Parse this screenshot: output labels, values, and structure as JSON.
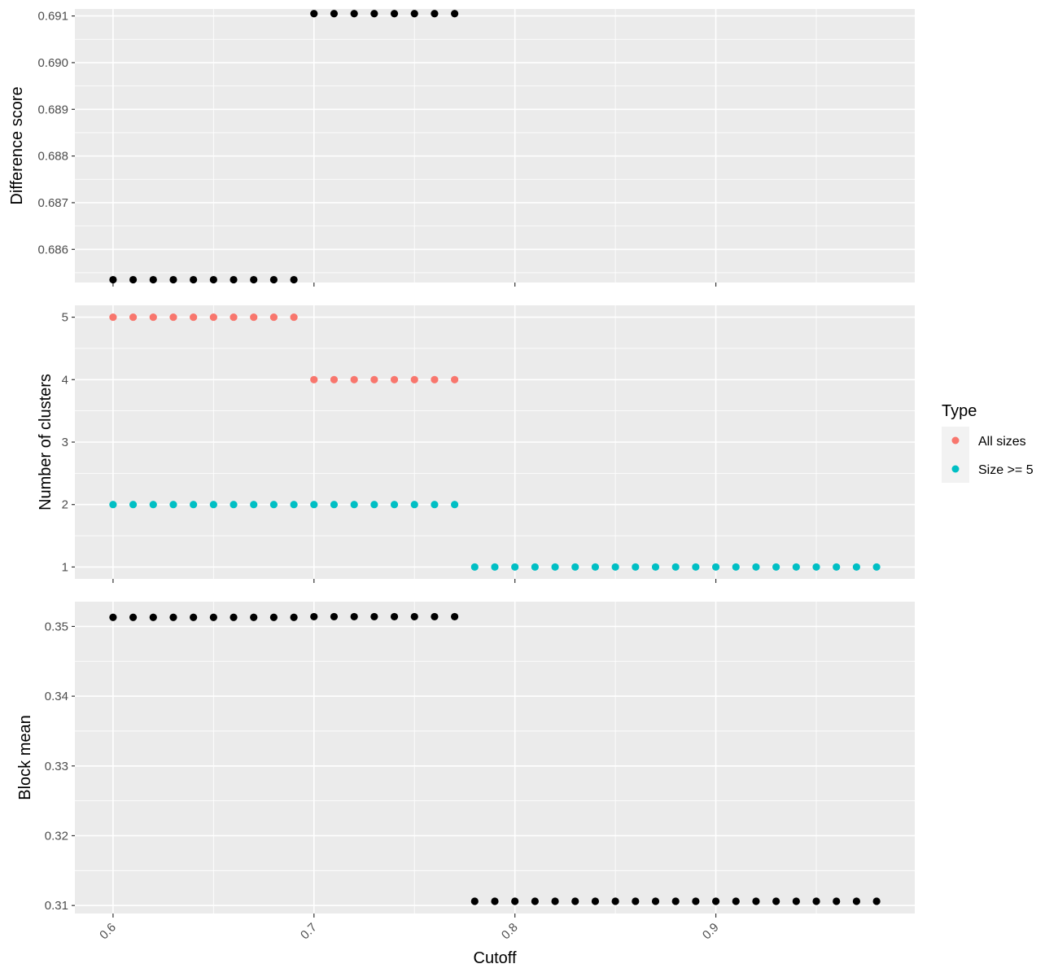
{
  "chart_data": [
    {
      "type": "scatter",
      "panel": "top",
      "xlabel": "",
      "ylabel": "Difference score",
      "xlim": [
        0.581,
        0.999
      ],
      "ylim": [
        0.68529,
        0.69115
      ],
      "yticks": [
        0.686,
        0.687,
        0.688,
        0.689,
        0.69,
        0.691
      ],
      "ytick_labels": [
        "0.686",
        "0.687",
        "0.688",
        "0.689",
        "0.690",
        "0.691"
      ],
      "grid": true,
      "series": [
        {
          "color": "#000000",
          "points": [
            {
              "x": 0.6,
              "y": 0.68535
            },
            {
              "x": 0.61,
              "y": 0.68535
            },
            {
              "x": 0.62,
              "y": 0.68535
            },
            {
              "x": 0.63,
              "y": 0.68535
            },
            {
              "x": 0.64,
              "y": 0.68535
            },
            {
              "x": 0.65,
              "y": 0.68535
            },
            {
              "x": 0.66,
              "y": 0.68535
            },
            {
              "x": 0.67,
              "y": 0.68535
            },
            {
              "x": 0.68,
              "y": 0.68535
            },
            {
              "x": 0.69,
              "y": 0.68535
            },
            {
              "x": 0.7,
              "y": 0.69105
            },
            {
              "x": 0.71,
              "y": 0.69105
            },
            {
              "x": 0.72,
              "y": 0.69105
            },
            {
              "x": 0.73,
              "y": 0.69105
            },
            {
              "x": 0.74,
              "y": 0.69105
            },
            {
              "x": 0.75,
              "y": 0.69105
            },
            {
              "x": 0.76,
              "y": 0.69105
            },
            {
              "x": 0.77,
              "y": 0.69105
            }
          ]
        }
      ]
    },
    {
      "type": "scatter",
      "panel": "middle",
      "xlabel": "",
      "ylabel": "Number of clusters",
      "xlim": [
        0.581,
        0.999
      ],
      "ylim": [
        0.81,
        5.19
      ],
      "yticks": [
        1,
        2,
        3,
        4,
        5
      ],
      "ytick_labels": [
        "1",
        "2",
        "3",
        "4",
        "5"
      ],
      "grid": true,
      "series": [
        {
          "name": "All sizes",
          "color": "#F8766D",
          "points": [
            {
              "x": 0.6,
              "y": 5
            },
            {
              "x": 0.61,
              "y": 5
            },
            {
              "x": 0.62,
              "y": 5
            },
            {
              "x": 0.63,
              "y": 5
            },
            {
              "x": 0.64,
              "y": 5
            },
            {
              "x": 0.65,
              "y": 5
            },
            {
              "x": 0.66,
              "y": 5
            },
            {
              "x": 0.67,
              "y": 5
            },
            {
              "x": 0.68,
              "y": 5
            },
            {
              "x": 0.69,
              "y": 5
            },
            {
              "x": 0.7,
              "y": 4
            },
            {
              "x": 0.71,
              "y": 4
            },
            {
              "x": 0.72,
              "y": 4
            },
            {
              "x": 0.73,
              "y": 4
            },
            {
              "x": 0.74,
              "y": 4
            },
            {
              "x": 0.75,
              "y": 4
            },
            {
              "x": 0.76,
              "y": 4
            },
            {
              "x": 0.77,
              "y": 4
            }
          ]
        },
        {
          "name": "Size >= 5",
          "color": "#00BFC4",
          "points": [
            {
              "x": 0.6,
              "y": 2
            },
            {
              "x": 0.61,
              "y": 2
            },
            {
              "x": 0.62,
              "y": 2
            },
            {
              "x": 0.63,
              "y": 2
            },
            {
              "x": 0.64,
              "y": 2
            },
            {
              "x": 0.65,
              "y": 2
            },
            {
              "x": 0.66,
              "y": 2
            },
            {
              "x": 0.67,
              "y": 2
            },
            {
              "x": 0.68,
              "y": 2
            },
            {
              "x": 0.69,
              "y": 2
            },
            {
              "x": 0.7,
              "y": 2
            },
            {
              "x": 0.71,
              "y": 2
            },
            {
              "x": 0.72,
              "y": 2
            },
            {
              "x": 0.73,
              "y": 2
            },
            {
              "x": 0.74,
              "y": 2
            },
            {
              "x": 0.75,
              "y": 2
            },
            {
              "x": 0.76,
              "y": 2
            },
            {
              "x": 0.77,
              "y": 2
            },
            {
              "x": 0.78,
              "y": 1
            },
            {
              "x": 0.79,
              "y": 1
            },
            {
              "x": 0.8,
              "y": 1
            },
            {
              "x": 0.81,
              "y": 1
            },
            {
              "x": 0.82,
              "y": 1
            },
            {
              "x": 0.83,
              "y": 1
            },
            {
              "x": 0.84,
              "y": 1
            },
            {
              "x": 0.85,
              "y": 1
            },
            {
              "x": 0.86,
              "y": 1
            },
            {
              "x": 0.87,
              "y": 1
            },
            {
              "x": 0.88,
              "y": 1
            },
            {
              "x": 0.89,
              "y": 1
            },
            {
              "x": 0.9,
              "y": 1
            },
            {
              "x": 0.91,
              "y": 1
            },
            {
              "x": 0.92,
              "y": 1
            },
            {
              "x": 0.93,
              "y": 1
            },
            {
              "x": 0.94,
              "y": 1
            },
            {
              "x": 0.95,
              "y": 1
            },
            {
              "x": 0.96,
              "y": 1
            },
            {
              "x": 0.97,
              "y": 1
            },
            {
              "x": 0.98,
              "y": 1
            }
          ]
        }
      ]
    },
    {
      "type": "scatter",
      "panel": "bottom",
      "xlabel": "Cutoff",
      "ylabel": "Block mean",
      "xlim": [
        0.581,
        0.999
      ],
      "ylim": [
        0.30885,
        0.35355
      ],
      "yticks": [
        0.31,
        0.32,
        0.33,
        0.34,
        0.35
      ],
      "ytick_labels": [
        "0.31",
        "0.32",
        "0.33",
        "0.34",
        "0.35"
      ],
      "xticks": [
        0.6,
        0.7,
        0.8,
        0.9
      ],
      "xtick_labels": [
        "0.6",
        "0.7",
        "0.8",
        "0.9"
      ],
      "grid": true,
      "series": [
        {
          "color": "#000000",
          "points": [
            {
              "x": 0.6,
              "y": 0.3513
            },
            {
              "x": 0.61,
              "y": 0.3513
            },
            {
              "x": 0.62,
              "y": 0.3513
            },
            {
              "x": 0.63,
              "y": 0.3513
            },
            {
              "x": 0.64,
              "y": 0.3513
            },
            {
              "x": 0.65,
              "y": 0.3513
            },
            {
              "x": 0.66,
              "y": 0.3513
            },
            {
              "x": 0.67,
              "y": 0.3513
            },
            {
              "x": 0.68,
              "y": 0.3513
            },
            {
              "x": 0.69,
              "y": 0.3513
            },
            {
              "x": 0.7,
              "y": 0.3514
            },
            {
              "x": 0.71,
              "y": 0.3514
            },
            {
              "x": 0.72,
              "y": 0.3514
            },
            {
              "x": 0.73,
              "y": 0.3514
            },
            {
              "x": 0.74,
              "y": 0.3514
            },
            {
              "x": 0.75,
              "y": 0.3514
            },
            {
              "x": 0.76,
              "y": 0.3514
            },
            {
              "x": 0.77,
              "y": 0.3514
            },
            {
              "x": 0.78,
              "y": 0.3106
            },
            {
              "x": 0.79,
              "y": 0.3106
            },
            {
              "x": 0.8,
              "y": 0.3106
            },
            {
              "x": 0.81,
              "y": 0.3106
            },
            {
              "x": 0.82,
              "y": 0.3106
            },
            {
              "x": 0.83,
              "y": 0.3106
            },
            {
              "x": 0.84,
              "y": 0.3106
            },
            {
              "x": 0.85,
              "y": 0.3106
            },
            {
              "x": 0.86,
              "y": 0.3106
            },
            {
              "x": 0.87,
              "y": 0.3106
            },
            {
              "x": 0.88,
              "y": 0.3106
            },
            {
              "x": 0.89,
              "y": 0.3106
            },
            {
              "x": 0.9,
              "y": 0.3106
            },
            {
              "x": 0.91,
              "y": 0.3106
            },
            {
              "x": 0.92,
              "y": 0.3106
            },
            {
              "x": 0.93,
              "y": 0.3106
            },
            {
              "x": 0.94,
              "y": 0.3106
            },
            {
              "x": 0.95,
              "y": 0.3106
            },
            {
              "x": 0.96,
              "y": 0.3106
            },
            {
              "x": 0.97,
              "y": 0.3106
            },
            {
              "x": 0.98,
              "y": 0.3106
            }
          ]
        }
      ]
    }
  ],
  "legend": {
    "title": "Type",
    "placement": "right",
    "items": [
      {
        "label": "All sizes",
        "color": "#F8766D"
      },
      {
        "label": "Size >= 5",
        "color": "#00BFC4"
      }
    ]
  },
  "colors": {
    "panel_background": "#EBEBEB",
    "grid": "#FFFFFF",
    "tick_text": "#4D4D4D"
  }
}
